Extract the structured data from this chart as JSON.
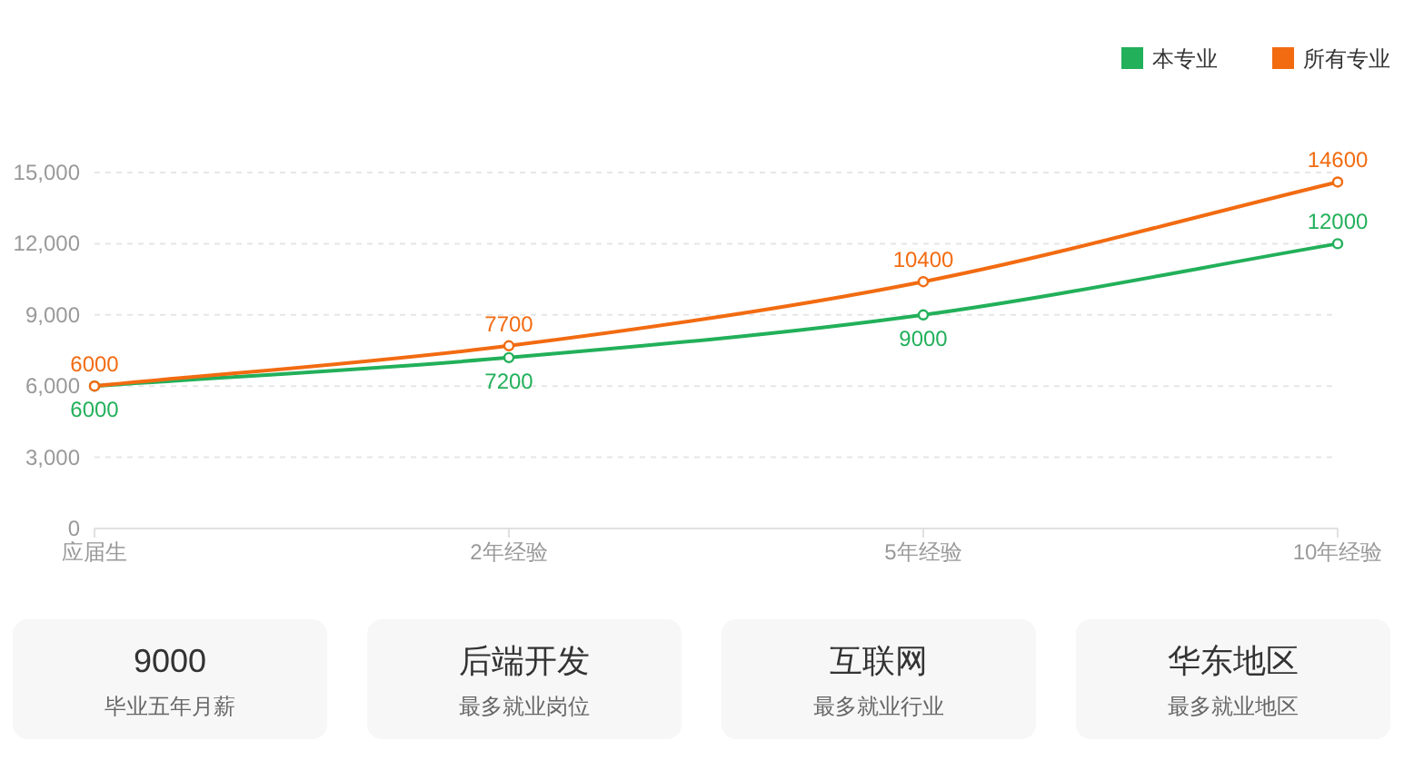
{
  "chart_data": [
    {
      "type": "line",
      "categories": [
        "应届生",
        "2年经验",
        "5年经验",
        "10年经验"
      ],
      "series": [
        {
          "name": "本专业",
          "color": "#22b05a",
          "values": [
            6000,
            7200,
            9000,
            12000
          ]
        },
        {
          "name": "所有专业",
          "color": "#f26b11",
          "values": [
            6000,
            7700,
            10400,
            14600
          ]
        }
      ],
      "ylim": [
        0,
        15000
      ],
      "yticks": [
        0,
        {
          "value": 3000,
          "label": "3,000"
        },
        {
          "value": 6000,
          "label": "6,000"
        },
        {
          "value": 9000,
          "label": "9,000"
        },
        {
          "value": 12000,
          "label": "12,000"
        },
        {
          "value": 15000,
          "label": "15,000"
        }
      ],
      "grid": "y",
      "legend": "top right",
      "marker": "circle",
      "data_labels": true
    },
    {
      "type": "other",
      "title": "9000",
      "subtitle": "毕业五年月薪"
    },
    {
      "type": "other",
      "title": "后端开发",
      "subtitle": "最多就业岗位"
    },
    {
      "type": "other",
      "title": "互联网",
      "subtitle": "最多就业行业"
    },
    {
      "type": "other",
      "title": "华东地区",
      "subtitle": "最多就业地区"
    }
  ]
}
